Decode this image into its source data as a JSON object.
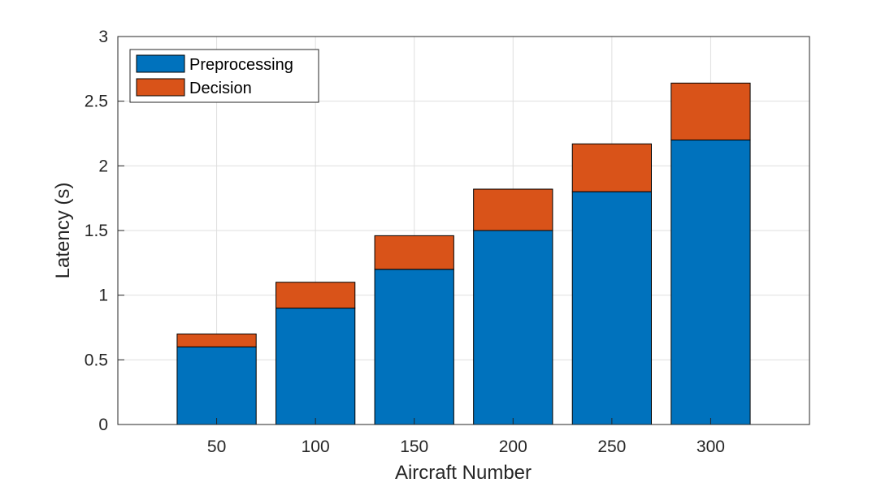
{
  "chart_data": {
    "type": "bar",
    "stacked": true,
    "title": "",
    "xlabel": "Aircraft Number",
    "ylabel": "Latency (s)",
    "categories": [
      "50",
      "100",
      "150",
      "200",
      "250",
      "300"
    ],
    "series": [
      {
        "name": "Preprocessing",
        "color": "#0072BD",
        "values": [
          0.6,
          0.9,
          1.2,
          1.5,
          1.8,
          2.2
        ]
      },
      {
        "name": "Decision",
        "color": "#D95319",
        "values": [
          0.1,
          0.2,
          0.26,
          0.32,
          0.37,
          0.44
        ]
      }
    ],
    "ylim": [
      0,
      3
    ],
    "yticks": [
      "0",
      "0.5",
      "1",
      "1.5",
      "2",
      "2.5",
      "3"
    ],
    "grid": true,
    "legend_position": "top-left"
  }
}
